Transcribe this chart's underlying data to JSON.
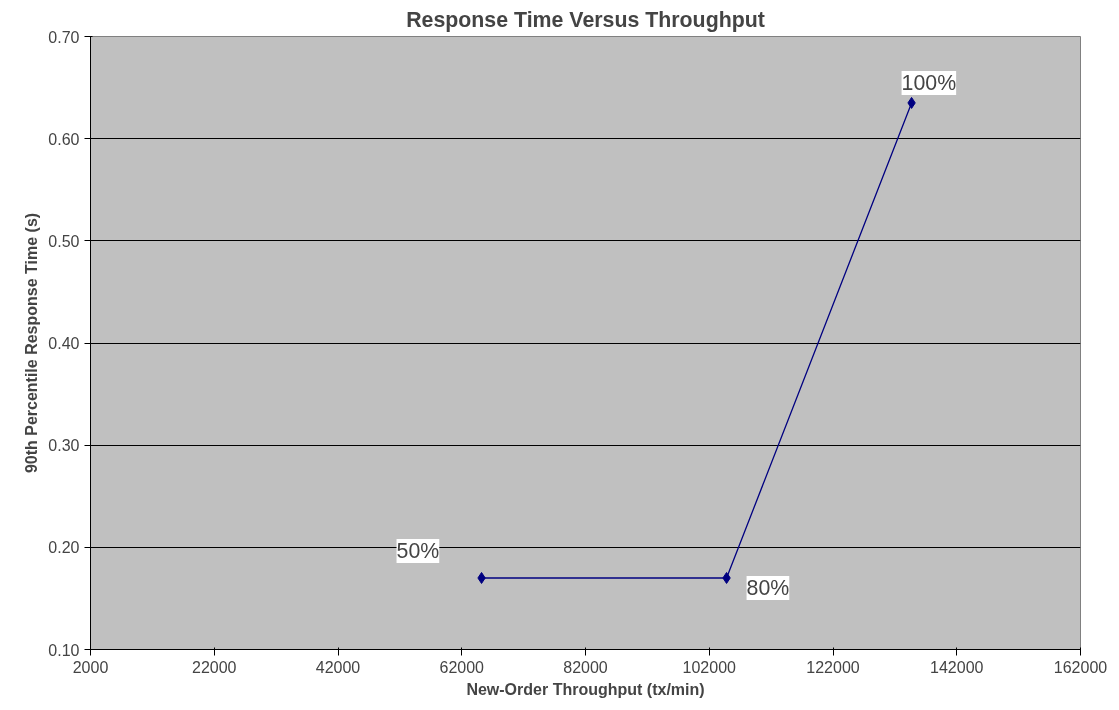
{
  "chart_data": {
    "type": "line",
    "title": "Response Time Versus Throughput",
    "xlabel": "New-Order Throughput (tx/min)",
    "ylabel": "90th Percentile Response Time (s)",
    "x": [
      65200,
      104800,
      134700
    ],
    "series": [
      {
        "color": "#000080",
        "values": [
          0.17,
          0.17,
          0.635
        ]
      }
    ],
    "xlim": [
      2000,
      162000
    ],
    "xticks": [
      2000,
      22000,
      42000,
      62000,
      82000,
      102000,
      122000,
      142000,
      162000
    ],
    "ylim": [
      0.1,
      0.7
    ],
    "yticks": [
      {
        "value": 0.1,
        "label": "0.10"
      },
      {
        "value": 0.2,
        "label": "0.20"
      },
      {
        "value": 0.3,
        "label": "0.30"
      },
      {
        "value": 0.4,
        "label": "0.40"
      },
      {
        "value": 0.5,
        "label": "0.50"
      },
      {
        "value": 0.6,
        "label": "0.60"
      },
      {
        "value": 0.7,
        "label": "0.70"
      }
    ],
    "grid": "y",
    "marker": "diamond",
    "line_style": "solid",
    "annotations": [
      {
        "text": "50%",
        "x": 65200,
        "y": 0.17
      },
      {
        "text": "80%",
        "x": 104800,
        "y": 0.17
      },
      {
        "text": "100%",
        "x": 134700,
        "y": 0.635
      }
    ]
  }
}
